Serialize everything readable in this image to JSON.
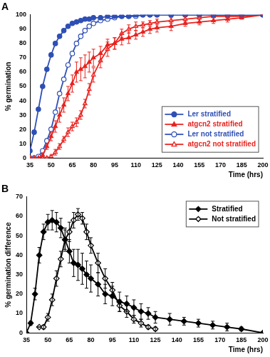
{
  "chart_data": [
    {
      "type": "line",
      "title": "A",
      "x_label": "Time (hrs)",
      "y_label": "% germination",
      "x": [
        35,
        38,
        41,
        44,
        47,
        50,
        53,
        56,
        59,
        62,
        65,
        68,
        71,
        74,
        77,
        80,
        85,
        90,
        95,
        100,
        105,
        110,
        115,
        120,
        125,
        135,
        145,
        155,
        165,
        175,
        185,
        200
      ],
      "xlim": [
        35,
        200
      ],
      "xticks": [
        35,
        50,
        65,
        80,
        95,
        110,
        125,
        140,
        155,
        170,
        185,
        200
      ],
      "ylim": [
        0,
        100
      ],
      "yticks": [
        0,
        10,
        20,
        30,
        40,
        50,
        60,
        70,
        80,
        90,
        100
      ],
      "grid": false,
      "legend": "lower right",
      "series": [
        {
          "name": "Ler stratified",
          "color": "#2e4fb5",
          "marker": "circle",
          "line_style": "solid",
          "values": [
            5,
            18,
            34,
            50,
            62,
            72,
            80,
            85,
            89,
            92,
            94,
            95,
            96,
            97,
            97,
            98,
            98,
            99,
            99,
            99,
            99,
            100,
            100,
            100,
            100,
            100,
            100,
            100,
            100,
            100,
            100,
            100
          ]
        },
        {
          "name": "atgcn2 stratified",
          "color": "#e8231f",
          "marker": "triangle",
          "line_style": "solid",
          "values": [
            0,
            0,
            0,
            2,
            8,
            15,
            22,
            30,
            37,
            45,
            52,
            60,
            62,
            64,
            67,
            70,
            73,
            79,
            80,
            83,
            84,
            86,
            88,
            90,
            91,
            92,
            94,
            95,
            96,
            97,
            98,
            100
          ],
          "errors": [
            0,
            0,
            0,
            1,
            2,
            3,
            4,
            5,
            5,
            5,
            6,
            7,
            8,
            8,
            7,
            6,
            5,
            4,
            4,
            4,
            4,
            3,
            3,
            3,
            3,
            3,
            2,
            2,
            2,
            2,
            1,
            0
          ]
        },
        {
          "name": "Ler not stratified",
          "color": "#2e4fb5",
          "marker": "circle-open",
          "line_style": "solid",
          "values": [
            0,
            0,
            1,
            5,
            12,
            20,
            32,
            45,
            55,
            65,
            73,
            80,
            85,
            89,
            92,
            94,
            96,
            97,
            98,
            99,
            99,
            99,
            100,
            100,
            100,
            100,
            100,
            100,
            100,
            100,
            100,
            100
          ]
        },
        {
          "name": "atgcn2 not stratified",
          "color": "#e8231f",
          "marker": "triangle-open",
          "line_style": "solid",
          "values": [
            0,
            0,
            0,
            0,
            0,
            1,
            4,
            8,
            13,
            18,
            22,
            25,
            30,
            38,
            48,
            58,
            68,
            76,
            80,
            87,
            90,
            92,
            93,
            94,
            95,
            96,
            97,
            98,
            99,
            99,
            99,
            100
          ],
          "errors": [
            0,
            0,
            0,
            0,
            0,
            1,
            2,
            2,
            2,
            3,
            3,
            3,
            3,
            3,
            4,
            5,
            5,
            5,
            4,
            3,
            3,
            3,
            2,
            2,
            2,
            2,
            2,
            1,
            1,
            1,
            1,
            0
          ]
        }
      ]
    },
    {
      "type": "line",
      "title": "B",
      "x_label": "Time (hrs)",
      "y_label": "% germination difference",
      "x": [
        35,
        38,
        41,
        44,
        47,
        50,
        53,
        56,
        59,
        62,
        65,
        68,
        71,
        74,
        77,
        80,
        85,
        90,
        95,
        100,
        105,
        110,
        115,
        120,
        125,
        135,
        145,
        155,
        165,
        175,
        185,
        200
      ],
      "xlim": [
        35,
        200
      ],
      "xticks": [
        35,
        50,
        65,
        80,
        95,
        110,
        125,
        140,
        155,
        170,
        185,
        200
      ],
      "ylim": [
        0,
        70
      ],
      "yticks": [
        0,
        10,
        20,
        30,
        40,
        50,
        60,
        70
      ],
      "grid": false,
      "legend": "upper right",
      "series": [
        {
          "name": "Stratified",
          "color": "#000000",
          "marker": "diamond",
          "line_style": "solid",
          "values": [
            0,
            5,
            20,
            40,
            52,
            57,
            58,
            57,
            54,
            48,
            42,
            36,
            35,
            33,
            30,
            28,
            25,
            20,
            19,
            16,
            15,
            13,
            11,
            10,
            8,
            7,
            6,
            5,
            4,
            3,
            2,
            0
          ],
          "errors": [
            0,
            1,
            3,
            4,
            4,
            4,
            5,
            5,
            5,
            6,
            6,
            7,
            8,
            8,
            7,
            7,
            6,
            5,
            5,
            5,
            4,
            4,
            4,
            3,
            3,
            3,
            2,
            2,
            2,
            2,
            1,
            0
          ]
        },
        {
          "name": "Not stratified",
          "color": "#000000",
          "marker": "diamond-open",
          "line_style": "solid",
          "values": [
            null,
            null,
            null,
            3,
            3,
            8,
            17,
            28,
            38,
            48,
            52,
            58,
            61,
            59,
            52,
            45,
            36,
            28,
            22,
            14,
            11,
            7,
            5,
            3,
            2,
            null,
            null,
            null,
            null,
            null,
            null,
            null
          ],
          "errors": [
            null,
            null,
            null,
            0,
            1,
            2,
            3,
            4,
            4,
            5,
            5,
            4,
            3,
            3,
            4,
            4,
            5,
            5,
            4,
            3,
            3,
            2,
            2,
            1,
            1,
            null,
            null,
            null,
            null,
            null,
            null,
            null
          ]
        }
      ]
    }
  ]
}
